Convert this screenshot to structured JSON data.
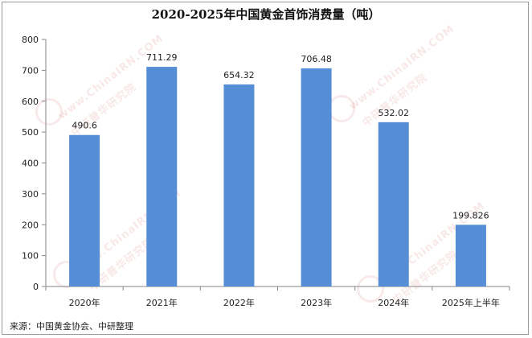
{
  "chart_data": {
    "type": "bar",
    "title": "2020-2025年中国黄金首饰消费量（吨）",
    "categories": [
      "2020年",
      "2021年",
      "2022年",
      "2023年",
      "2024年",
      "2025年上半年"
    ],
    "values": [
      490.6,
      711.29,
      654.32,
      706.48,
      532.02,
      199.826
    ],
    "value_labels": [
      "490.6",
      "711.29",
      "654.32",
      "706.48",
      "532.02",
      "199.826"
    ],
    "ylim": [
      0,
      800
    ],
    "yticks": [
      0,
      100,
      200,
      300,
      400,
      500,
      600,
      700,
      800
    ],
    "xlabel": "",
    "ylabel": "",
    "grid": false,
    "bar_color": "#558ed5"
  },
  "source": "来源：中国黄金协会、中研整理",
  "watermark": {
    "line1": "www.ChinaIRN.COM",
    "line2": "中研普华研究院"
  }
}
